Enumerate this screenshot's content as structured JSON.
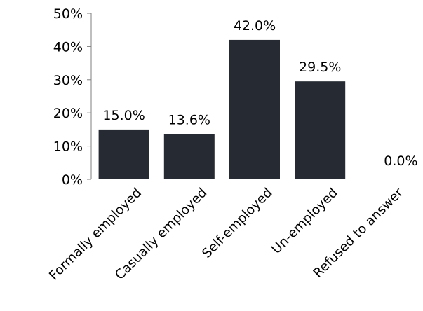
{
  "chart_data": {
    "type": "bar",
    "title": "",
    "xlabel": "",
    "ylabel": "",
    "categories": [
      "Formally employed",
      "Casually employed",
      "Self-employed",
      "Un-employed",
      "Refused to answer"
    ],
    "values": [
      15.0,
      13.6,
      42.0,
      29.5,
      0.0
    ],
    "value_labels": [
      "15.0%",
      "13.6%",
      "42.0%",
      "29.5%",
      "0.0%"
    ],
    "ylim": [
      0,
      50
    ],
    "yticks": [
      0,
      10,
      20,
      30,
      40,
      50
    ],
    "ytick_labels": [
      "0%",
      "10%",
      "20%",
      "30%",
      "40%",
      "50%"
    ],
    "grid": false,
    "legend": "none",
    "bar_color": "#252a33"
  }
}
